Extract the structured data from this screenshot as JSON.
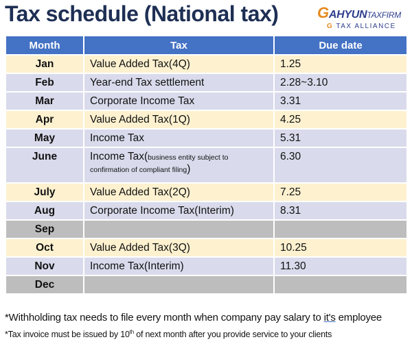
{
  "title": "Tax schedule (National tax)",
  "logo": {
    "g1": "G",
    "main": "AHYUN",
    "firm": "TAXFIRM",
    "g2": "G",
    "sub": "TAX ALLIANCE"
  },
  "table": {
    "headers": {
      "month": "Month",
      "tax": "Tax",
      "due": "Due date"
    },
    "rows": [
      {
        "month": "Jan",
        "tax": "Value Added Tax(4Q)",
        "due": "1.25"
      },
      {
        "month": "Feb",
        "tax": "Year-end Tax settlement",
        "due": "2.28~3.10"
      },
      {
        "month": "Mar",
        "tax": "Corporate Income Tax",
        "due": "3.31"
      },
      {
        "month": "Apr",
        "tax": "Value Added Tax(1Q)",
        "due": "4.25"
      },
      {
        "month": "May",
        "tax": "Income Tax",
        "due": "5.31"
      },
      {
        "month": "June",
        "tax": "Income Tax(",
        "tax_note": "business entity subject to confirmation of compliant filing",
        "tax_end": ")",
        "due": "6.30"
      },
      {
        "month": "July",
        "tax": "Value Added Tax(2Q)",
        "due": "7.25"
      },
      {
        "month": "Aug",
        "tax": "Corporate Income Tax(Interim)",
        "due": "8.31"
      },
      {
        "month": "Sep",
        "tax": "",
        "due": ""
      },
      {
        "month": "Oct",
        "tax": "Value Added Tax(3Q)",
        "due": "10.25"
      },
      {
        "month": "Nov",
        "tax": "Income Tax(Interim)",
        "due": "11.30"
      },
      {
        "month": "Dec",
        "tax": "",
        "due": ""
      }
    ]
  },
  "footnotes": {
    "f1_a": "*Withholding tax needs to file every month when company pay salary to ",
    "f1_b": "it's",
    "f1_c": " employee",
    "f2_a": "*Tax invoice must be issued by 10",
    "f2_sup": "th",
    "f2_b": " of next month after you provide service to your clients"
  },
  "colors": {
    "header": "#4472c4",
    "row_yellow": "#fdf1cf",
    "row_lavender": "#d9dbec",
    "row_gray": "#bdbdbd",
    "title": "#1e2f54",
    "logo_orange": "#e58a1f",
    "logo_blue": "#2f3e8c"
  }
}
